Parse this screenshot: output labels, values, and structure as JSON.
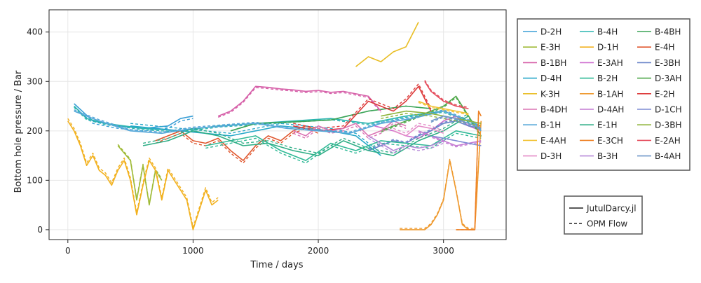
{
  "chart_data": {
    "type": "line",
    "title": "",
    "xlabel": "Time / days",
    "ylabel": "Bottom hole pressure / Bar",
    "xlim": [
      -150,
      3500
    ],
    "ylim": [
      -20,
      445
    ],
    "xticks": [
      0,
      1000,
      2000,
      3000
    ],
    "yticks": [
      0,
      100,
      200,
      300,
      400
    ],
    "grid": true,
    "legend_placement": "right",
    "style_legend": [
      {
        "label": "JutulDarcy.jl",
        "dash": "solid"
      },
      {
        "label": "OPM Flow",
        "dash": "dashed"
      }
    ],
    "series": [
      {
        "name": "D-2H",
        "color": "#3a9fd6",
        "x": [
          50,
          200,
          400,
          600,
          800,
          900,
          1000
        ],
        "y": [
          255,
          220,
          210,
          205,
          210,
          225,
          230
        ]
      },
      {
        "name": "B-4H",
        "color": "#2cb5b0",
        "x": [
          50,
          150,
          300,
          600,
          900,
          1200,
          1500,
          1800,
          2100,
          2400,
          2700,
          3000,
          3300
        ],
        "y": [
          250,
          225,
          215,
          205,
          200,
          210,
          215,
          220,
          225,
          215,
          230,
          240,
          210
        ]
      },
      {
        "name": "B-4BH",
        "color": "#3aa457",
        "x": [
          1300,
          1500,
          1800,
          2100,
          2400,
          2700,
          2900
        ],
        "y": [
          200,
          215,
          218,
          222,
          240,
          250,
          245
        ]
      },
      {
        "name": "E-3H",
        "color": "#9fba36",
        "x": [
          400,
          500,
          550,
          600,
          650,
          700,
          750
        ],
        "y": [
          170,
          140,
          60,
          130,
          50,
          120,
          100
        ]
      },
      {
        "name": "D-1H",
        "color": "#f2b11f",
        "x": [
          0,
          50,
          100,
          150,
          200,
          250,
          300,
          350,
          400,
          450,
          500,
          550,
          600,
          650,
          700,
          750,
          800,
          850,
          900,
          950,
          1000,
          1050,
          1100,
          1150,
          1200
        ],
        "y": [
          220,
          200,
          170,
          130,
          150,
          120,
          110,
          90,
          120,
          140,
          100,
          30,
          90,
          140,
          120,
          60,
          120,
          100,
          80,
          60,
          0,
          40,
          80,
          50,
          60
        ]
      },
      {
        "name": "E-4H",
        "color": "#e0562d",
        "x": [
          700,
          800,
          900,
          1000,
          1100,
          1200,
          1300,
          1400,
          1500,
          1600,
          1700,
          1800,
          1900,
          2000
        ],
        "y": [
          180,
          190,
          200,
          180,
          175,
          185,
          160,
          140,
          170,
          190,
          180,
          200,
          210,
          200
        ]
      },
      {
        "name": "B-1BH",
        "color": "#d65fa8",
        "x": [
          1200,
          1300,
          1400,
          1500,
          1600,
          1700,
          1800,
          1900,
          2000,
          2100,
          2200,
          2300,
          2400,
          2500
        ],
        "y": [
          230,
          240,
          260,
          290,
          288,
          285,
          283,
          280,
          282,
          278,
          280,
          275,
          270,
          240
        ]
      },
      {
        "name": "E-3AH",
        "color": "#cf6fd0",
        "x": [
          2450,
          2600,
          2700,
          2800,
          2900,
          3000,
          3100,
          3200,
          3300
        ],
        "y": [
          210,
          200,
          190,
          185,
          200,
          220,
          230,
          210,
          200
        ]
      },
      {
        "name": "E-3BH",
        "color": "#6a85c9",
        "x": [
          2400,
          2500,
          2600,
          2700,
          2800,
          2900,
          3000,
          3100,
          3200,
          3300
        ],
        "y": [
          160,
          170,
          180,
          175,
          190,
          200,
          215,
          220,
          210,
          205
        ]
      },
      {
        "name": "D-4H",
        "color": "#28a8c9",
        "x": [
          500,
          700,
          900,
          1100,
          1300,
          1500,
          1700,
          1900,
          2100,
          2300,
          2500
        ],
        "y": [
          210,
          205,
          200,
          195,
          190,
          200,
          210,
          205,
          200,
          190,
          150
        ]
      },
      {
        "name": "B-2H",
        "color": "#2fb996",
        "x": [
          1100,
          1300,
          1500,
          1700,
          1900,
          2100,
          2300,
          2500,
          2700,
          2900,
          3100,
          3300
        ],
        "y": [
          170,
          180,
          190,
          160,
          140,
          175,
          160,
          180,
          175,
          170,
          200,
          190
        ]
      },
      {
        "name": "D-3AH",
        "color": "#4fa84a",
        "x": [
          2500,
          2700,
          2900,
          3000,
          3100,
          3200,
          3300
        ],
        "y": [
          200,
          220,
          240,
          250,
          270,
          230,
          190
        ]
      },
      {
        "name": "K-3H",
        "color": "#e9bf29",
        "x": [
          2300,
          2400,
          2500,
          2600,
          2700,
          2800
        ],
        "y": [
          330,
          350,
          340,
          360,
          370,
          420
        ]
      },
      {
        "name": "B-1AH",
        "color": "#ef9a2f",
        "x": [
          2650,
          2750,
          2850,
          2900,
          2950,
          3000,
          3050,
          3100,
          3150,
          3200,
          3250,
          3300
        ],
        "y": [
          0,
          0,
          0,
          10,
          30,
          60,
          140,
          80,
          10,
          0,
          0,
          220
        ]
      },
      {
        "name": "E-2H",
        "color": "#dd3a3a",
        "x": [
          1800,
          2000,
          2200,
          2400,
          2600,
          2700,
          2800,
          2900
        ],
        "y": [
          210,
          200,
          205,
          260,
          240,
          260,
          290,
          240
        ]
      },
      {
        "name": "B-4DH",
        "color": "#db73b3",
        "x": [
          1800,
          1900,
          2000,
          2100,
          2200,
          2300,
          2400,
          2500,
          2600,
          2700
        ],
        "y": [
          200,
          190,
          210,
          200,
          205,
          215,
          190,
          200,
          220,
          210
        ]
      },
      {
        "name": "D-4AH",
        "color": "#c47ad2",
        "x": [
          2800,
          2900,
          3000,
          3100,
          3200,
          3300
        ],
        "y": [
          200,
          190,
          180,
          170,
          175,
          180
        ]
      },
      {
        "name": "D-1CH",
        "color": "#7d8bd4",
        "x": [
          2900,
          3000,
          3100,
          3200,
          3300
        ],
        "y": [
          190,
          185,
          180,
          175,
          170
        ]
      },
      {
        "name": "B-1H",
        "color": "#55a7d8",
        "x": [
          50,
          250,
          500,
          750,
          1000,
          1250,
          1500,
          1750,
          2000,
          2250,
          2500,
          2750,
          3000,
          3250,
          3300
        ],
        "y": [
          240,
          220,
          200,
          195,
          205,
          210,
          215,
          205,
          200,
          195,
          215,
          225,
          240,
          215,
          200
        ]
      },
      {
        "name": "E-1H",
        "color": "#2eae86",
        "x": [
          600,
          800,
          1000,
          1200,
          1400,
          1600,
          1800,
          2000,
          2200,
          2400,
          2600,
          2800,
          3000,
          3200
        ],
        "y": [
          170,
          180,
          200,
          190,
          170,
          175,
          160,
          150,
          180,
          160,
          150,
          180,
          200,
          230
        ]
      },
      {
        "name": "D-3BH",
        "color": "#8fb43b",
        "x": [
          2500,
          2700,
          2900,
          3100,
          3300
        ],
        "y": [
          230,
          240,
          235,
          225,
          215
        ]
      },
      {
        "name": "E-4AH",
        "color": "#f1c232",
        "x": [
          2800,
          2900,
          3000,
          3100,
          3200
        ],
        "y": [
          260,
          250,
          245,
          240,
          235
        ]
      },
      {
        "name": "E-3CH",
        "color": "#ee8024",
        "x": [
          3100,
          3150,
          3200,
          3250,
          3280,
          3300
        ],
        "y": [
          0,
          0,
          0,
          0,
          240,
          230
        ]
      },
      {
        "name": "E-2AH",
        "color": "#e54c5c",
        "x": [
          2850,
          2900,
          3000,
          3100,
          3200
        ],
        "y": [
          300,
          280,
          260,
          250,
          245
        ]
      },
      {
        "name": "D-3H",
        "color": "#e48cc8",
        "x": [
          2600,
          2700,
          2800,
          2900,
          3000
        ],
        "y": [
          200,
          190,
          210,
          205,
          195
        ]
      },
      {
        "name": "B-3H",
        "color": "#b88ad9",
        "x": [
          2400,
          2500,
          2600,
          2700,
          2800,
          2900,
          3000
        ],
        "y": [
          190,
          175,
          160,
          170,
          165,
          170,
          180
        ]
      },
      {
        "name": "B-4AH",
        "color": "#6f97c9",
        "x": [
          2900,
          3000,
          3100,
          3200,
          3300
        ],
        "y": [
          220,
          230,
          225,
          215,
          205
        ]
      }
    ]
  }
}
